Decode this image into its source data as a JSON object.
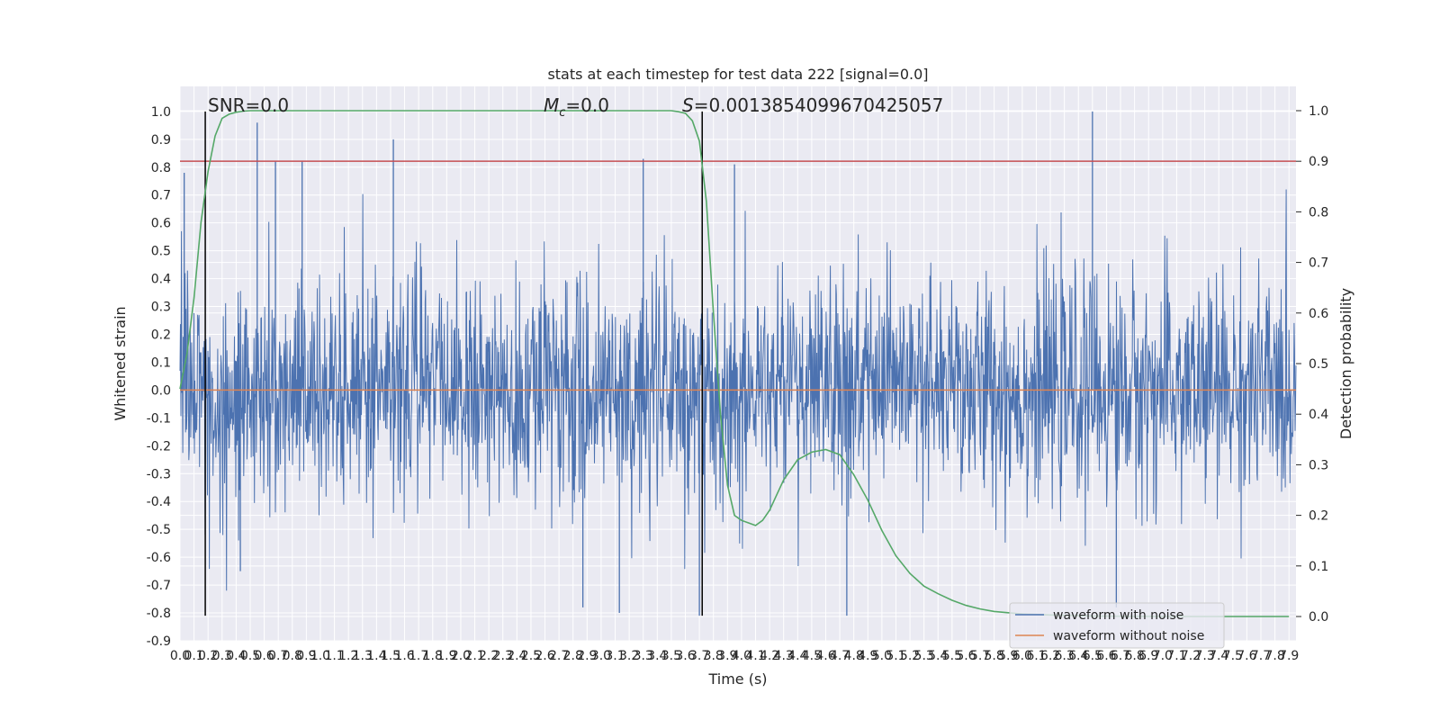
{
  "chart_data": {
    "type": "line",
    "title": "stats at each timestep for test data 222 [signal=0.0]",
    "xlabel": "Time (s)",
    "ylabel": "Whitened strain",
    "y2label": "Detection probability",
    "xlim": [
      0.0,
      7.95
    ],
    "ylim": [
      -0.9,
      1.09
    ],
    "y2lim": [
      -0.048,
      1.048
    ],
    "grid": true,
    "legend_position": "lower right",
    "x_ticks": [
      "0.0",
      "0.1",
      "0.2",
      "0.3",
      "0.4",
      "0.5",
      "0.6",
      "0.7",
      "0.8",
      "0.9",
      "1.0",
      "1.1",
      "1.2",
      "1.3",
      "1.4",
      "1.5",
      "1.6",
      "1.7",
      "1.8",
      "1.9",
      "2.0",
      "2.1",
      "2.2",
      "2.3",
      "2.4",
      "2.5",
      "2.6",
      "2.7",
      "2.8",
      "2.9",
      "3.0",
      "3.1",
      "3.2",
      "3.3",
      "3.4",
      "3.5",
      "3.6",
      "3.7",
      "3.8",
      "3.9",
      "4.0",
      "4.1",
      "4.2",
      "4.3",
      "4.4",
      "4.5",
      "4.6",
      "4.7",
      "4.8",
      "4.9",
      "5.0",
      "5.1",
      "5.2",
      "5.3",
      "5.4",
      "5.5",
      "5.6",
      "5.7",
      "5.8",
      "5.9",
      "6.0",
      "6.1",
      "6.2",
      "6.3",
      "6.4",
      "6.5",
      "6.6",
      "6.7",
      "6.8",
      "6.9",
      "7.0",
      "7.1",
      "7.2",
      "7.3",
      "7.4",
      "7.5",
      "7.6",
      "7.7",
      "7.8",
      "7.9"
    ],
    "y_ticks": [
      "-0.9",
      "-0.8",
      "-0.7",
      "-0.6",
      "-0.5",
      "-0.4",
      "-0.3",
      "-0.2",
      "-0.1",
      "0.0",
      "0.1",
      "0.2",
      "0.3",
      "0.4",
      "0.5",
      "0.6",
      "0.7",
      "0.8",
      "0.9",
      "1.0"
    ],
    "y2_ticks": [
      "0.0",
      "0.1",
      "0.2",
      "0.3",
      "0.4",
      "0.5",
      "0.6",
      "0.7",
      "0.8",
      "0.9",
      "1.0"
    ],
    "annotations": {
      "snr": "SNR=0.0",
      "mc_symbol": "M",
      "mc_sub": "c",
      "mc_value": "=0.0",
      "s_symbol": "S",
      "s_value": "=0.0013854099670425057"
    },
    "vertical_lines_x": [
      0.18,
      3.72
    ],
    "threshold_y2": 0.9,
    "series": [
      {
        "name": "waveform with noise",
        "color": "#4c72b0",
        "axis": "left",
        "style": "dense-noise",
        "approx_range": [
          -0.81,
          1.0
        ],
        "peak_points": [
          {
            "x": 0.03,
            "y": 0.78
          },
          {
            "x": 0.55,
            "y": 0.96
          },
          {
            "x": 0.68,
            "y": 0.82
          },
          {
            "x": 0.87,
            "y": 0.82
          },
          {
            "x": 1.52,
            "y": 0.9
          },
          {
            "x": 3.3,
            "y": 0.83
          },
          {
            "x": 3.95,
            "y": 0.81
          },
          {
            "x": 6.5,
            "y": 1.0
          },
          {
            "x": 0.43,
            "y": -0.65
          },
          {
            "x": 2.87,
            "y": -0.78
          },
          {
            "x": 3.13,
            "y": -0.8
          },
          {
            "x": 3.7,
            "y": -0.81
          },
          {
            "x": 4.75,
            "y": -0.81
          },
          {
            "x": 6.67,
            "y": -0.78
          },
          {
            "x": 0.81,
            "y": -0.07
          }
        ]
      },
      {
        "name": "waveform without noise",
        "color": "#dd8452",
        "axis": "left",
        "x": [
          0.0,
          7.95
        ],
        "y": [
          0.0,
          0.0
        ]
      },
      {
        "name": "",
        "color": "#55a868",
        "axis": "right",
        "x": [
          0.0,
          0.05,
          0.1,
          0.15,
          0.2,
          0.25,
          0.3,
          0.35,
          0.4,
          0.45,
          0.5,
          0.6,
          0.8,
          1.0,
          2.0,
          3.0,
          3.4,
          3.5,
          3.55,
          3.6,
          3.65,
          3.7,
          3.75,
          3.8,
          3.85,
          3.9,
          3.95,
          4.0,
          4.05,
          4.1,
          4.15,
          4.2,
          4.25,
          4.3,
          4.4,
          4.5,
          4.6,
          4.7,
          4.8,
          4.9,
          5.0,
          5.1,
          5.2,
          5.3,
          5.4,
          5.5,
          5.6,
          5.7,
          5.8,
          6.0,
          6.2,
          6.5,
          7.0,
          7.5,
          7.9
        ],
        "y": [
          0.45,
          0.52,
          0.63,
          0.78,
          0.88,
          0.95,
          0.985,
          0.993,
          0.997,
          0.999,
          1.0,
          1.0,
          1.0,
          1.0,
          1.0,
          1.0,
          1.0,
          1.0,
          0.998,
          0.995,
          0.98,
          0.94,
          0.82,
          0.6,
          0.4,
          0.26,
          0.2,
          0.19,
          0.185,
          0.18,
          0.19,
          0.21,
          0.24,
          0.27,
          0.31,
          0.325,
          0.33,
          0.32,
          0.28,
          0.23,
          0.17,
          0.12,
          0.085,
          0.06,
          0.045,
          0.032,
          0.022,
          0.015,
          0.01,
          0.005,
          0.003,
          0.001,
          0.0,
          0.0,
          0.0
        ]
      },
      {
        "name": "",
        "color": "#c44e52",
        "axis": "right",
        "x": [
          0.0,
          7.95
        ],
        "y": [
          0.9,
          0.9
        ]
      }
    ],
    "legend": [
      {
        "label": "waveform with noise",
        "color": "#4c72b0"
      },
      {
        "label": "waveform without noise",
        "color": "#dd8452"
      }
    ]
  }
}
